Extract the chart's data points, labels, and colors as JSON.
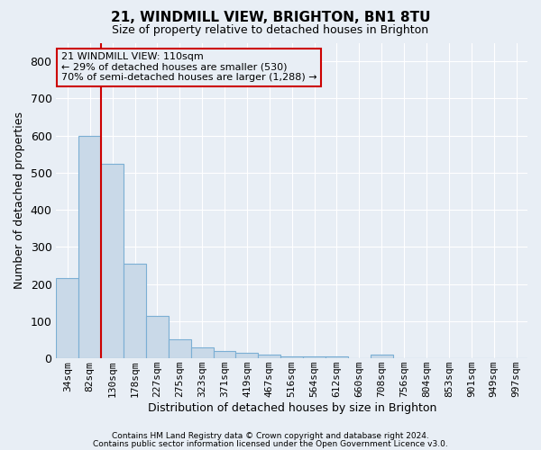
{
  "title": "21, WINDMILL VIEW, BRIGHTON, BN1 8TU",
  "subtitle": "Size of property relative to detached houses in Brighton",
  "xlabel": "Distribution of detached houses by size in Brighton",
  "ylabel": "Number of detached properties",
  "footer1": "Contains HM Land Registry data © Crown copyright and database right 2024.",
  "footer2": "Contains public sector information licensed under the Open Government Licence v3.0.",
  "bar_labels": [
    "34sqm",
    "82sqm",
    "130sqm",
    "178sqm",
    "227sqm",
    "275sqm",
    "323sqm",
    "371sqm",
    "419sqm",
    "467sqm",
    "516sqm",
    "564sqm",
    "612sqm",
    "660sqm",
    "708sqm",
    "756sqm",
    "804sqm",
    "853sqm",
    "901sqm",
    "949sqm",
    "997sqm"
  ],
  "bar_values": [
    215,
    600,
    525,
    255,
    115,
    52,
    30,
    20,
    15,
    10,
    5,
    5,
    5,
    0,
    10,
    0,
    0,
    0,
    0,
    0,
    0
  ],
  "bar_color": "#c9d9e8",
  "bar_edge_color": "#7bafd4",
  "background_color": "#e8eef5",
  "grid_color": "#ffffff",
  "annotation_text_line1": "21 WINDMILL VIEW: 110sqm",
  "annotation_text_line2": "← 29% of detached houses are smaller (530)",
  "annotation_text_line3": "70% of semi-detached houses are larger (1,288) →",
  "red_line_color": "#cc0000",
  "annotation_box_edge_color": "#cc0000",
  "red_line_x": 1.5,
  "ylim": [
    0,
    850
  ],
  "yticks": [
    0,
    100,
    200,
    300,
    400,
    500,
    600,
    700,
    800
  ],
  "title_fontsize": 11,
  "subtitle_fontsize": 9,
  "ylabel_fontsize": 9,
  "xlabel_fontsize": 9,
  "tick_fontsize": 9,
  "xtick_fontsize": 8,
  "footer_fontsize": 6.5,
  "annotation_fontsize": 8
}
